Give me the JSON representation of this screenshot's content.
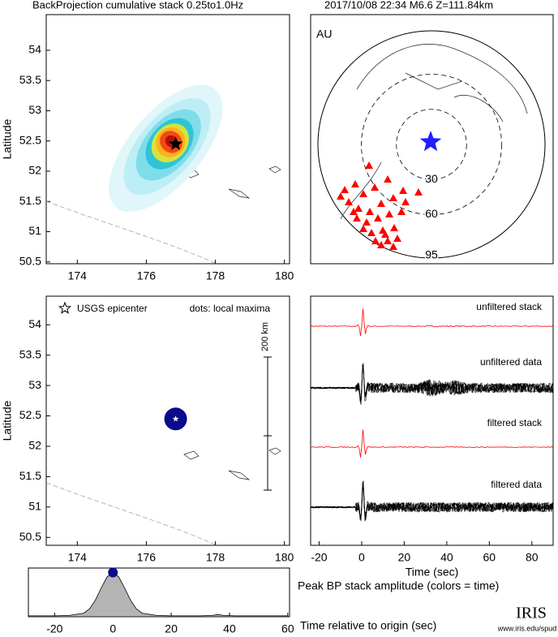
{
  "title": "BackProjection cumulative stack 0.25to1.0Hz",
  "event": "2017/10/08 22:34  M6.6  Z=111.84km",
  "chart_data": [
    {
      "type": "map",
      "xlim": [
        173.1,
        180.15
      ],
      "ylim": [
        50.47,
        54.59
      ],
      "xticks": [
        174,
        176,
        178,
        180
      ],
      "yticks": [
        50.5,
        51,
        51.5,
        52,
        52.5,
        53,
        53.5,
        54
      ],
      "ylabel": "Latitude",
      "epicenter": {
        "x": 176.85,
        "y": 52.45
      }
    },
    {
      "type": "globe",
      "label": "AU",
      "rings": [
        30,
        60,
        95
      ],
      "color": "#ff0000",
      "star_color": "#1f1fff"
    },
    {
      "type": "map",
      "xlim": [
        173.1,
        180.15
      ],
      "ylim": [
        50.37,
        54.47
      ],
      "xticks": [
        174,
        176,
        178,
        180
      ],
      "yticks": [
        50.5,
        51,
        51.5,
        52,
        52.5,
        53,
        53.5,
        54
      ],
      "ylabel": "Latitude",
      "legend": [
        "USGS epicenter",
        "dots: local maxima"
      ],
      "scale_label": "200 km",
      "epicenter": {
        "x": 176.85,
        "y": 52.45
      },
      "maxima": {
        "x": [
          176.85
        ],
        "y": [
          52.45
        ],
        "color": "#0a0a8c"
      }
    },
    {
      "type": "traces",
      "xlim": [
        -24,
        90
      ],
      "xticks": [
        -20,
        0,
        20,
        40,
        60,
        80
      ],
      "xlabel": "Time (sec)",
      "traces": [
        {
          "name": "unfiltered stack",
          "color": "#ff0000"
        },
        {
          "name": "unfiltered data",
          "color": "#000000"
        },
        {
          "name": "filtered stack",
          "color": "#ff0000"
        },
        {
          "name": "filtered data",
          "color": "#000000"
        }
      ]
    },
    {
      "type": "area",
      "title": "Peak BP stack amplitude (colors = time)",
      "xlabel": "Time relative to origin (sec)",
      "xlim": [
        -29,
        60.6
      ],
      "ylim": [
        0,
        1.1
      ],
      "xticks": [
        -20,
        0,
        20,
        40,
        60
      ],
      "x": [
        -29,
        -20,
        -15,
        -10,
        -8,
        -6,
        -4,
        -2,
        0,
        2,
        4,
        6,
        8,
        10,
        15,
        20,
        30,
        34,
        36,
        38,
        42,
        50,
        60
      ],
      "values": [
        0.02,
        0.02,
        0.03,
        0.08,
        0.18,
        0.38,
        0.65,
        0.9,
        1.0,
        0.9,
        0.65,
        0.38,
        0.18,
        0.08,
        0.03,
        0.02,
        0.02,
        0.03,
        0.05,
        0.03,
        0.02,
        0.02,
        0.02
      ],
      "color": "#b4b4b4",
      "peak": {
        "x": 0,
        "y": 1.0,
        "color": "#0a0a8c"
      }
    }
  ],
  "logo": {
    "name": "IRIS",
    "url": "www.iris.edu/spud"
  }
}
